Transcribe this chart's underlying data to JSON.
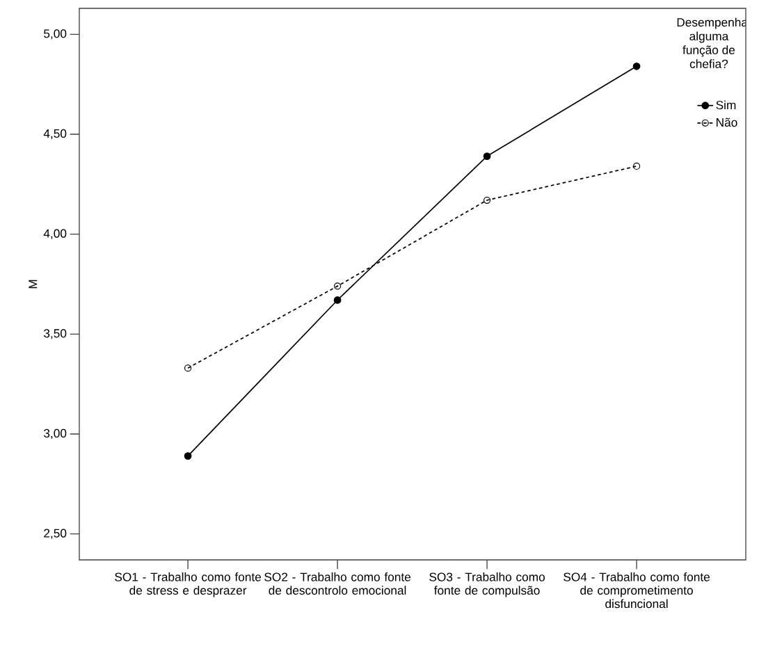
{
  "chart_data": {
    "type": "line",
    "ylabel": "M",
    "legend_title": "Desempenha alguma função de chefia?",
    "categories": [
      "SO1 - Trabalho como fonte de stress e desprazer",
      "SO2 - Trabalho como fonte de descontrolo emocional",
      "SO3 - Trabalho como fonte de compulsão",
      "SO4 - Trabalho como fonte de comprometimento disfuncional"
    ],
    "series": [
      {
        "name": "Sim",
        "color": "#000000",
        "values": [
          2.89,
          3.67,
          4.39,
          4.84
        ],
        "line_style": "solid",
        "marker": "circle"
      },
      {
        "name": "Não",
        "color": "#000000",
        "values": [
          3.33,
          3.74,
          4.17,
          4.34
        ],
        "line_style": "dashed",
        "marker": "circle-open"
      }
    ],
    "ylim": [
      2.37,
      5.13
    ],
    "yticks": [
      {
        "value": 2.5,
        "label": "2,50"
      },
      {
        "value": 3.0,
        "label": "3,00"
      },
      {
        "value": 3.5,
        "label": "3,50"
      },
      {
        "value": 4.0,
        "label": "4,00"
      },
      {
        "value": 4.5,
        "label": "4,50"
      },
      {
        "value": 5.0,
        "label": "5,00"
      }
    ],
    "grid": false,
    "legend": "top right"
  }
}
